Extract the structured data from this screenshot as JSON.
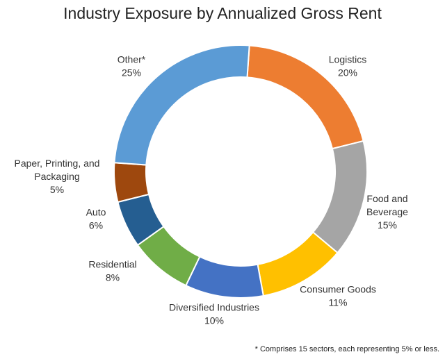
{
  "chart_data": {
    "type": "pie",
    "title": "Industry Exposure by Annualized Gross Rent",
    "footnote": "* Comprises 15 sectors, each representing 5% or less.",
    "slices": [
      {
        "label": [
          "Logistics"
        ],
        "value": 20,
        "value_label": "20%",
        "color": "#ED7D31"
      },
      {
        "label": [
          "Food and",
          "Beverage"
        ],
        "value": 15,
        "value_label": "15%",
        "color": "#A5A5A5"
      },
      {
        "label": [
          "Consumer Goods"
        ],
        "value": 11,
        "value_label": "11%",
        "color": "#FFC000"
      },
      {
        "label": [
          "Diversified Industries"
        ],
        "value": 10,
        "value_label": "10%",
        "color": "#4472C4"
      },
      {
        "label": [
          "Residential"
        ],
        "value": 8,
        "value_label": "8%",
        "color": "#70AD47"
      },
      {
        "label": [
          "Auto"
        ],
        "value": 6,
        "value_label": "6%",
        "color": "#255E91"
      },
      {
        "label": [
          "Paper, Printing, and",
          "Packaging"
        ],
        "value": 5,
        "value_label": "5%",
        "color": "#9E480E"
      },
      {
        "label": [
          "Other*"
        ],
        "value": 25,
        "value_label": "25%",
        "color": "#5B9BD5"
      }
    ]
  }
}
